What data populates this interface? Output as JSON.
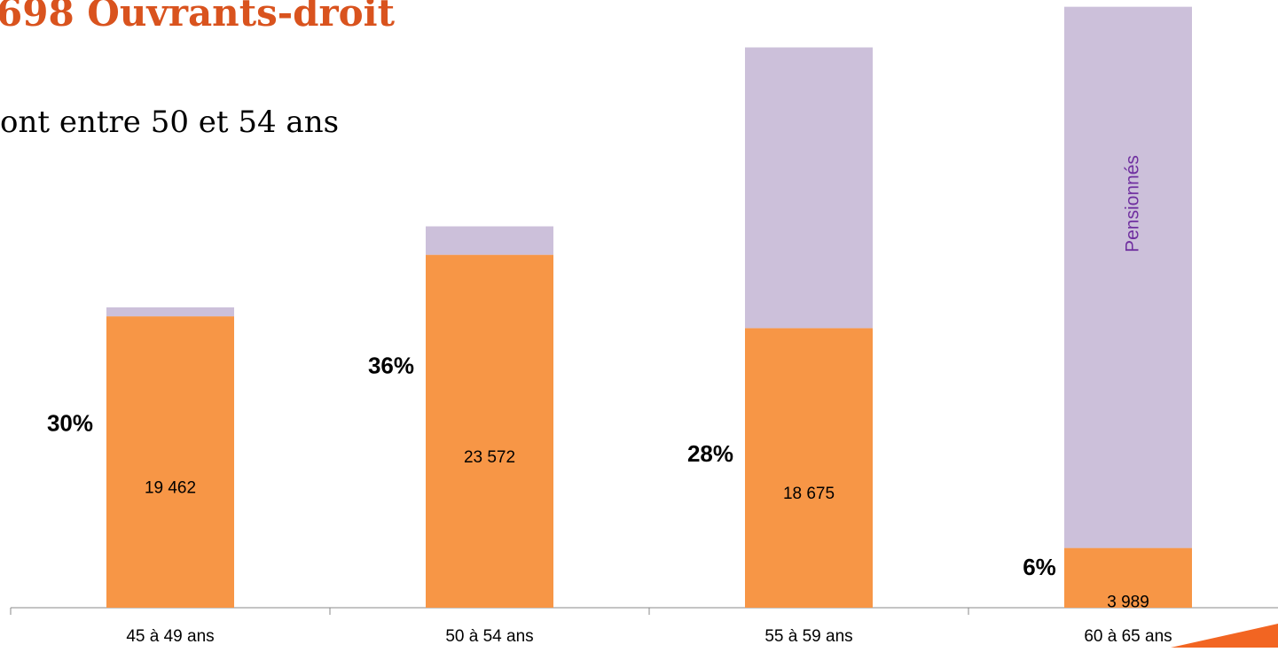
{
  "chart_data": {
    "type": "stacked-bar",
    "title": "698 Ouvrants-droit",
    "subtitle": "ont entre 50 et 54 ans",
    "categories": [
      "45 à 49 ans",
      "50 à 54 ans",
      "55 à 59 ans",
      "60 à 65 ans"
    ],
    "series": [
      {
        "color": "#f79646",
        "values": [
          19462,
          23572,
          18675,
          3989
        ],
        "value_labels": [
          "19 462",
          "23 572",
          "18 675",
          "3 989"
        ]
      },
      {
        "name": "Pensionnés",
        "color": "#ccc0da",
        "values": [
          600,
          1900,
          18750,
          36150
        ]
      }
    ],
    "share_labels": [
      "30%",
      "36%",
      "28%",
      "6%"
    ]
  }
}
